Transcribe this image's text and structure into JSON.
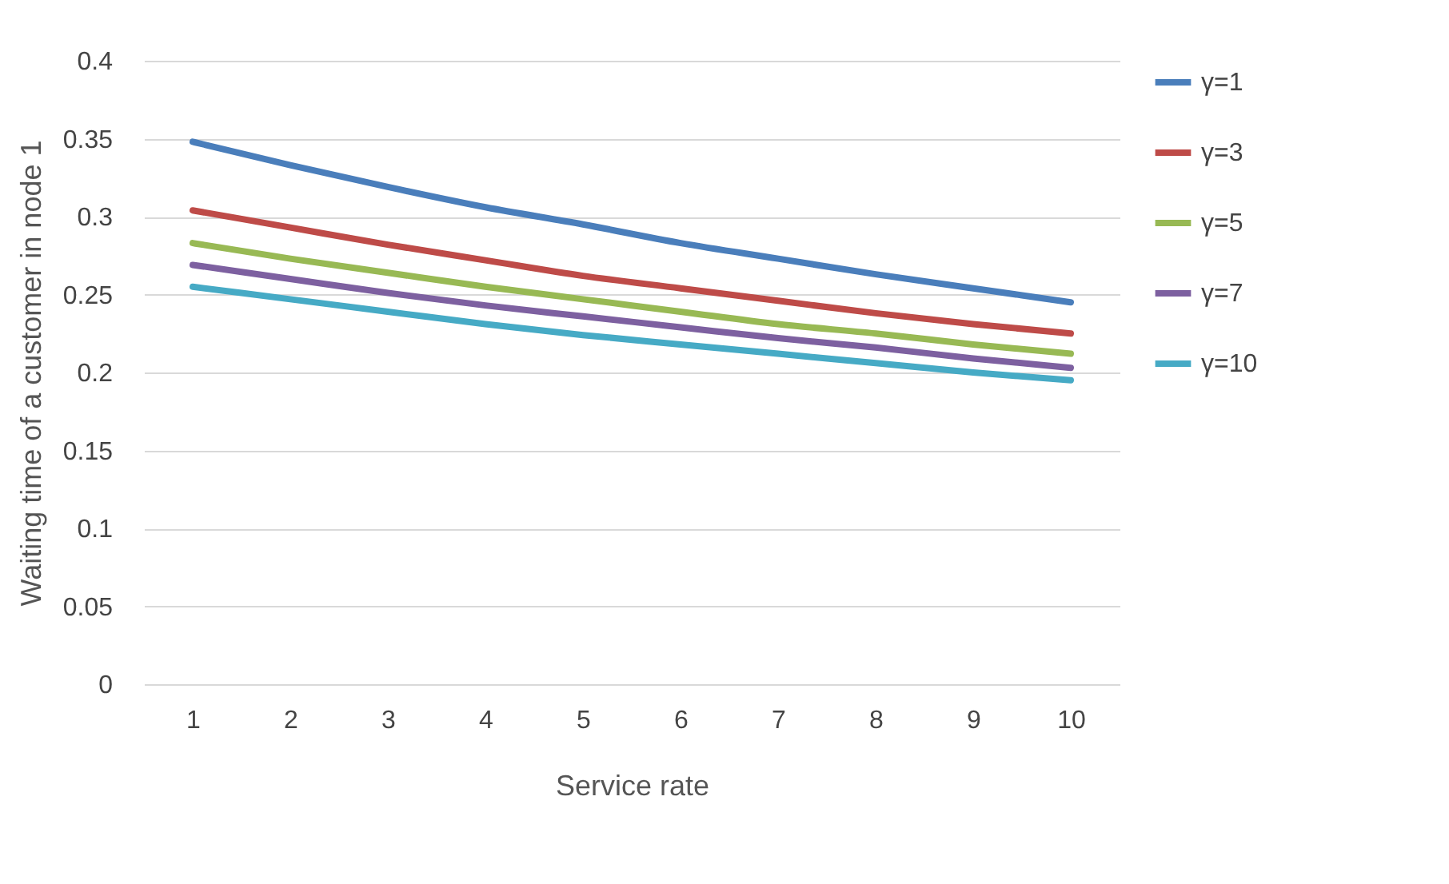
{
  "chart_data": {
    "type": "line",
    "xlabel": "Service rate",
    "ylabel": "Waiting time of a customer in node 1",
    "categories": [
      "1",
      "2",
      "3",
      "4",
      "5",
      "6",
      "7",
      "8",
      "9",
      "10"
    ],
    "series": [
      {
        "name": "γ=1",
        "color": "#4a7ebb",
        "values": [
          0.348,
          0.333,
          0.319,
          0.306,
          0.295,
          0.283,
          0.273,
          0.263,
          0.254,
          0.245
        ]
      },
      {
        "name": "γ=3",
        "color": "#be4b48",
        "values": [
          0.304,
          0.293,
          0.282,
          0.272,
          0.262,
          0.254,
          0.246,
          0.238,
          0.231,
          0.225
        ]
      },
      {
        "name": "γ=5",
        "color": "#98b954",
        "values": [
          0.283,
          0.273,
          0.264,
          0.255,
          0.247,
          0.239,
          0.231,
          0.225,
          0.218,
          0.212
        ]
      },
      {
        "name": "γ=7",
        "color": "#7d60a0",
        "values": [
          0.269,
          0.26,
          0.251,
          0.243,
          0.236,
          0.229,
          0.222,
          0.216,
          0.209,
          0.203
        ]
      },
      {
        "name": "γ=10",
        "color": "#46aac5",
        "values": [
          0.255,
          0.247,
          0.239,
          0.231,
          0.224,
          0.218,
          0.212,
          0.206,
          0.2,
          0.195
        ]
      }
    ],
    "ylim": [
      0,
      0.4
    ],
    "yticks": [
      0,
      0.05,
      0.1,
      0.15,
      0.2,
      0.25,
      0.3,
      0.35,
      0.4
    ],
    "grid": "y",
    "legend": "right",
    "marker": "none",
    "line_style": "solid"
  }
}
